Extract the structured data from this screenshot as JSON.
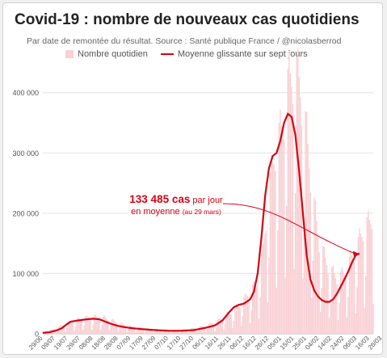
{
  "title": "Covid-19 : nombre de nouveaux cas quotidiens",
  "subtitle": "Par date de remontée du résultat. Source : Santé publique France / @nicolasberrod",
  "legend": {
    "bars_label": "Nombre quotidien",
    "line_label": "Moyenne glissante sur sept jours"
  },
  "annotation": {
    "value": "133 485 cas",
    "per_day": "par jour",
    "line2": "en moyenne",
    "date_note": "(au 29 mars)"
  },
  "colors": {
    "bars": "#f9d0d4",
    "line": "#d90012",
    "grid": "#e3e3e3",
    "axis_text": "#555555"
  },
  "chart_data": {
    "type": "bar",
    "x_tick_labels": [
      "29/06",
      "09/07",
      "19/07",
      "29/07",
      "08/08",
      "18/08",
      "28/08",
      "07/09",
      "17/09",
      "27/09",
      "07/10",
      "17/10",
      "27/10",
      "06/11",
      "16/11",
      "26/11",
      "06/12",
      "16/12",
      "26/12",
      "05/01",
      "15/01",
      "25/01",
      "04/02",
      "14/02",
      "24/02",
      "06/03",
      "16/03",
      "26/03"
    ],
    "y_ticks": [
      "0",
      "100 000",
      "200 000",
      "300 000",
      "400 000"
    ],
    "ylim": [
      0,
      460000
    ],
    "series": [
      {
        "kind": "bars",
        "description": "daily counts (estimated)",
        "knots": [
          [
            0,
            3000
          ],
          [
            10,
            8000
          ],
          [
            20,
            18000
          ],
          [
            30,
            25000
          ],
          [
            40,
            28000
          ],
          [
            50,
            26000
          ],
          [
            60,
            18000
          ],
          [
            70,
            12000
          ],
          [
            80,
            9000
          ],
          [
            90,
            7000
          ],
          [
            100,
            6000
          ],
          [
            110,
            6000
          ],
          [
            120,
            9000
          ],
          [
            130,
            13000
          ],
          [
            140,
            22000
          ],
          [
            150,
            35000
          ],
          [
            155,
            45000
          ],
          [
            160,
            55000
          ],
          [
            165,
            70000
          ],
          [
            170,
            80000
          ],
          [
            175,
            130000
          ],
          [
            180,
            230000
          ],
          [
            185,
            300000
          ],
          [
            190,
            330000
          ],
          [
            195,
            400000
          ],
          [
            200,
            430000
          ],
          [
            205,
            400000
          ],
          [
            210,
            320000
          ],
          [
            215,
            220000
          ],
          [
            220,
            150000
          ],
          [
            225,
            120000
          ],
          [
            230,
            100000
          ],
          [
            235,
            90000
          ],
          [
            240,
            100000
          ],
          [
            245,
            120000
          ],
          [
            250,
            140000
          ],
          [
            255,
            170000
          ],
          [
            260,
            180000
          ],
          [
            263,
            200000
          ]
        ]
      },
      {
        "kind": "line",
        "description": "seven-day rolling average (estimated)",
        "knots": [
          [
            0,
            1500
          ],
          [
            5,
            2500
          ],
          [
            10,
            5000
          ],
          [
            15,
            9000
          ],
          [
            18,
            14000
          ],
          [
            22,
            20000
          ],
          [
            28,
            22000
          ],
          [
            35,
            24000
          ],
          [
            40,
            25000
          ],
          [
            45,
            24000
          ],
          [
            50,
            20000
          ],
          [
            55,
            16000
          ],
          [
            60,
            13000
          ],
          [
            65,
            11000
          ],
          [
            70,
            9500
          ],
          [
            80,
            7500
          ],
          [
            90,
            6000
          ],
          [
            100,
            5000
          ],
          [
            110,
            5000
          ],
          [
            120,
            6000
          ],
          [
            130,
            10000
          ],
          [
            137,
            14000
          ],
          [
            143,
            22000
          ],
          [
            148,
            35000
          ],
          [
            152,
            44000
          ],
          [
            156,
            48000
          ],
          [
            160,
            50000
          ],
          [
            165,
            57000
          ],
          [
            168,
            70000
          ],
          [
            171,
            100000
          ],
          [
            174,
            160000
          ],
          [
            177,
            230000
          ],
          [
            180,
            275000
          ],
          [
            183,
            295000
          ],
          [
            186,
            300000
          ],
          [
            189,
            320000
          ],
          [
            192,
            350000
          ],
          [
            195,
            365000
          ],
          [
            198,
            360000
          ],
          [
            201,
            330000
          ],
          [
            204,
            270000
          ],
          [
            207,
            200000
          ],
          [
            210,
            130000
          ],
          [
            213,
            90000
          ],
          [
            216,
            72000
          ],
          [
            219,
            62000
          ],
          [
            222,
            56000
          ],
          [
            225,
            53000
          ],
          [
            228,
            53000
          ],
          [
            231,
            57000
          ],
          [
            234,
            66000
          ],
          [
            237,
            78000
          ],
          [
            240,
            90000
          ],
          [
            243,
            103000
          ],
          [
            246,
            118000
          ],
          [
            249,
            130000
          ],
          [
            252,
            133485
          ]
        ]
      }
    ]
  }
}
